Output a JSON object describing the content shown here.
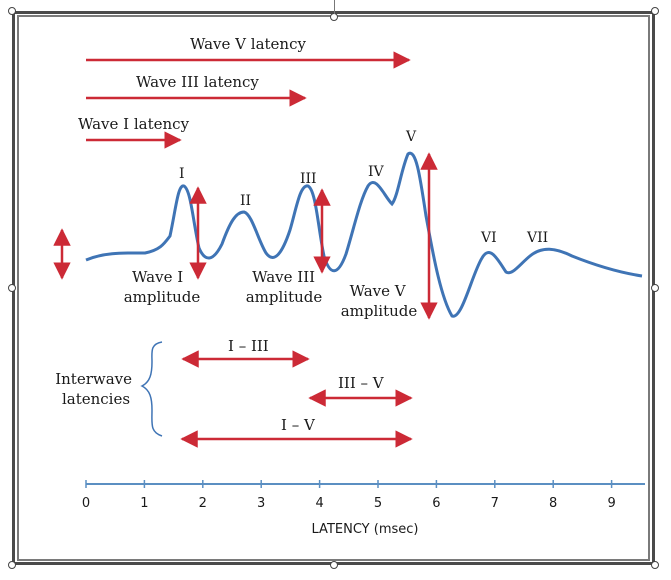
{
  "latency_labels": {
    "wave_v": "Wave V latency",
    "wave_iii": "Wave III latency",
    "wave_i": "Wave I latency"
  },
  "peaks": {
    "i": "I",
    "ii": "II",
    "iii": "III",
    "iv": "IV",
    "v": "V",
    "vi": "VI",
    "vii": "VII"
  },
  "amplitudes": {
    "wave_i": [
      "Wave I",
      "amplitude"
    ],
    "wave_iii": [
      "Wave III",
      "amplitude"
    ],
    "wave_v": [
      "Wave V",
      "amplitude"
    ]
  },
  "interwave": {
    "title": [
      "Interwave",
      "latencies"
    ],
    "i_iii": "I – III",
    "iii_v": "III – V",
    "i_v": "I – V"
  },
  "axis": {
    "title": "LATENCY (msec)",
    "ticks": [
      "0",
      "1",
      "2",
      "3",
      "4",
      "5",
      "6",
      "7",
      "8",
      "9"
    ]
  },
  "colors": {
    "wave": "#3f74b5",
    "arrow": "#cc2a36",
    "axis": "#5b8fc2"
  }
}
